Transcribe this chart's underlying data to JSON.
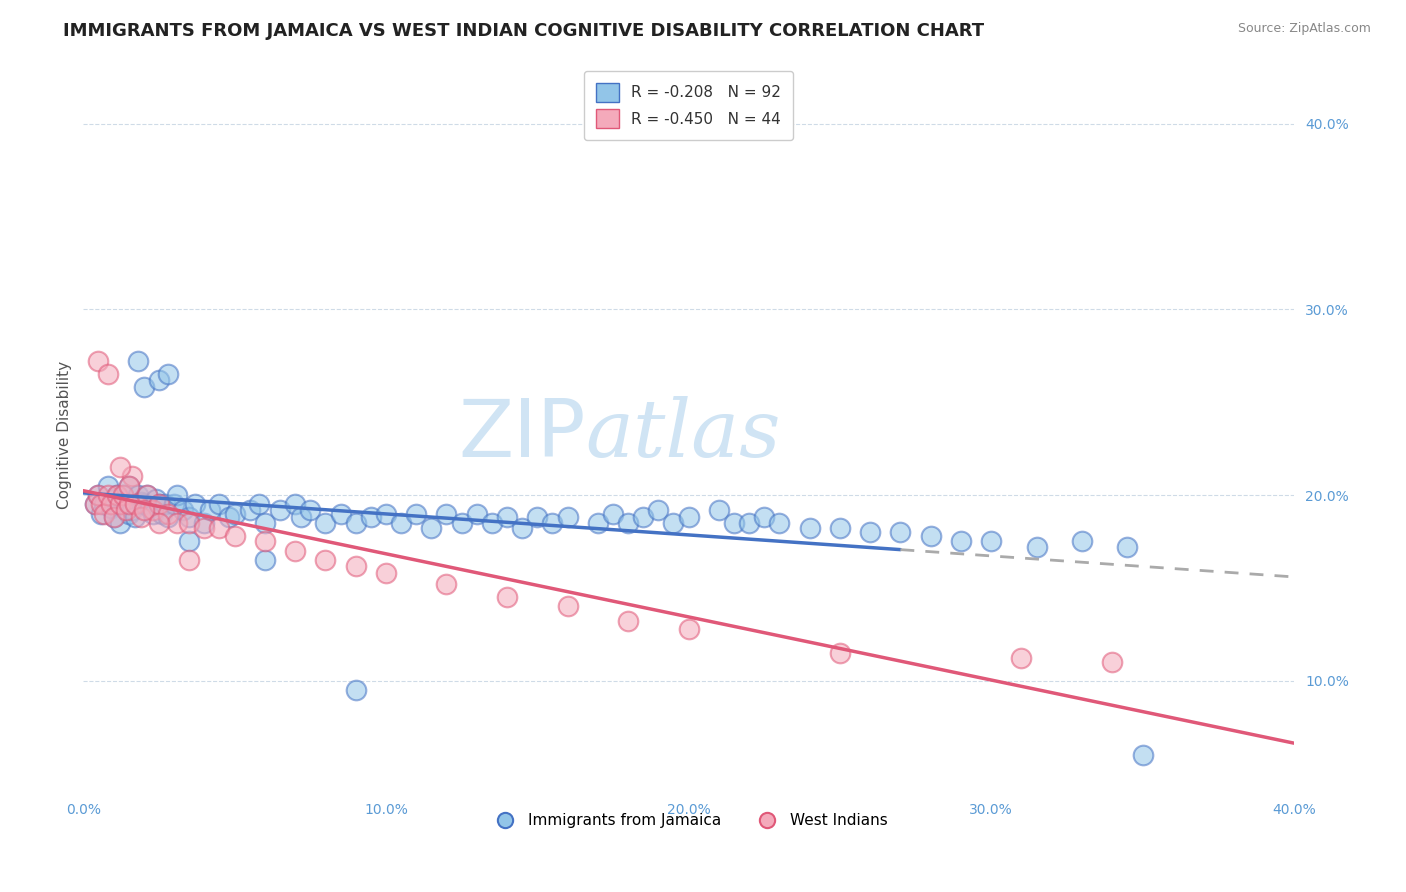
{
  "title": "IMMIGRANTS FROM JAMAICA VS WEST INDIAN COGNITIVE DISABILITY CORRELATION CHART",
  "source": "Source: ZipAtlas.com",
  "ylabel": "Cognitive Disability",
  "x_label_bottom": "Immigrants from Jamaica",
  "legend_label_1": "Immigrants from Jamaica",
  "legend_label_2": "West Indians",
  "R1": -0.208,
  "N1": 92,
  "R2": -0.45,
  "N2": 44,
  "color_blue": "#92C5E8",
  "color_pink": "#F4AABB",
  "color_line_blue": "#4472C4",
  "color_line_pink": "#E05878",
  "color_axis_labels": "#5B9BD5",
  "background_color": "#FFFFFF",
  "xlim": [
    0.0,
    0.4
  ],
  "ylim": [
    0.04,
    0.425
  ],
  "yticks": [
    0.1,
    0.2,
    0.3,
    0.4
  ],
  "ytick_labels": [
    "10.0%",
    "20.0%",
    "30.0%",
    "40.0%"
  ],
  "xticks": [
    0.0,
    0.1,
    0.2,
    0.3,
    0.4
  ],
  "xtick_labels": [
    "0.0%",
    "10.0%",
    "20.0%",
    "30.0%",
    "40.0%"
  ],
  "blue_x": [
    0.004,
    0.005,
    0.006,
    0.007,
    0.008,
    0.009,
    0.01,
    0.01,
    0.011,
    0.012,
    0.012,
    0.013,
    0.014,
    0.015,
    0.015,
    0.016,
    0.017,
    0.018,
    0.019,
    0.02,
    0.021,
    0.022,
    0.023,
    0.024,
    0.025,
    0.026,
    0.027,
    0.028,
    0.03,
    0.031,
    0.033,
    0.035,
    0.037,
    0.04,
    0.042,
    0.045,
    0.048,
    0.05,
    0.055,
    0.058,
    0.06,
    0.065,
    0.07,
    0.072,
    0.075,
    0.08,
    0.085,
    0.09,
    0.095,
    0.1,
    0.105,
    0.11,
    0.115,
    0.12,
    0.125,
    0.13,
    0.135,
    0.14,
    0.145,
    0.15,
    0.155,
    0.16,
    0.17,
    0.175,
    0.18,
    0.185,
    0.19,
    0.195,
    0.2,
    0.21,
    0.215,
    0.22,
    0.225,
    0.23,
    0.24,
    0.25,
    0.26,
    0.27,
    0.28,
    0.29,
    0.3,
    0.315,
    0.33,
    0.345,
    0.02,
    0.025,
    0.018,
    0.028,
    0.035,
    0.06,
    0.09,
    0.35
  ],
  "blue_y": [
    0.195,
    0.2,
    0.19,
    0.195,
    0.205,
    0.193,
    0.198,
    0.188,
    0.2,
    0.195,
    0.185,
    0.2,
    0.195,
    0.19,
    0.205,
    0.192,
    0.188,
    0.2,
    0.196,
    0.195,
    0.2,
    0.193,
    0.19,
    0.198,
    0.195,
    0.19,
    0.195,
    0.188,
    0.195,
    0.2,
    0.192,
    0.188,
    0.195,
    0.185,
    0.192,
    0.195,
    0.188,
    0.19,
    0.192,
    0.195,
    0.185,
    0.192,
    0.195,
    0.188,
    0.192,
    0.185,
    0.19,
    0.185,
    0.188,
    0.19,
    0.185,
    0.19,
    0.182,
    0.19,
    0.185,
    0.19,
    0.185,
    0.188,
    0.182,
    0.188,
    0.185,
    0.188,
    0.185,
    0.19,
    0.185,
    0.188,
    0.192,
    0.185,
    0.188,
    0.192,
    0.185,
    0.185,
    0.188,
    0.185,
    0.182,
    0.182,
    0.18,
    0.18,
    0.178,
    0.175,
    0.175,
    0.172,
    0.175,
    0.172,
    0.258,
    0.262,
    0.272,
    0.265,
    0.175,
    0.165,
    0.095,
    0.06
  ],
  "pink_x": [
    0.004,
    0.005,
    0.006,
    0.007,
    0.008,
    0.009,
    0.01,
    0.011,
    0.012,
    0.013,
    0.014,
    0.015,
    0.016,
    0.017,
    0.019,
    0.021,
    0.023,
    0.025,
    0.028,
    0.031,
    0.035,
    0.04,
    0.045,
    0.05,
    0.06,
    0.07,
    0.08,
    0.09,
    0.1,
    0.12,
    0.14,
    0.16,
    0.18,
    0.2,
    0.25,
    0.31,
    0.005,
    0.008,
    0.012,
    0.015,
    0.02,
    0.025,
    0.035,
    0.34
  ],
  "pink_y": [
    0.195,
    0.2,
    0.195,
    0.19,
    0.2,
    0.195,
    0.188,
    0.2,
    0.195,
    0.2,
    0.192,
    0.195,
    0.21,
    0.195,
    0.188,
    0.2,
    0.192,
    0.195,
    0.19,
    0.185,
    0.185,
    0.182,
    0.182,
    0.178,
    0.175,
    0.17,
    0.165,
    0.162,
    0.158,
    0.152,
    0.145,
    0.14,
    0.132,
    0.128,
    0.115,
    0.112,
    0.272,
    0.265,
    0.215,
    0.205,
    0.192,
    0.185,
    0.165,
    0.11
  ],
  "watermark_zip": "ZIP",
  "watermark_atlas": "atlas",
  "watermark_color": "#D0E4F4",
  "title_fontsize": 13,
  "axis_label_fontsize": 11,
  "tick_fontsize": 10,
  "legend_fontsize": 11,
  "dot_size": 200,
  "dot_linewidth": 1.5
}
